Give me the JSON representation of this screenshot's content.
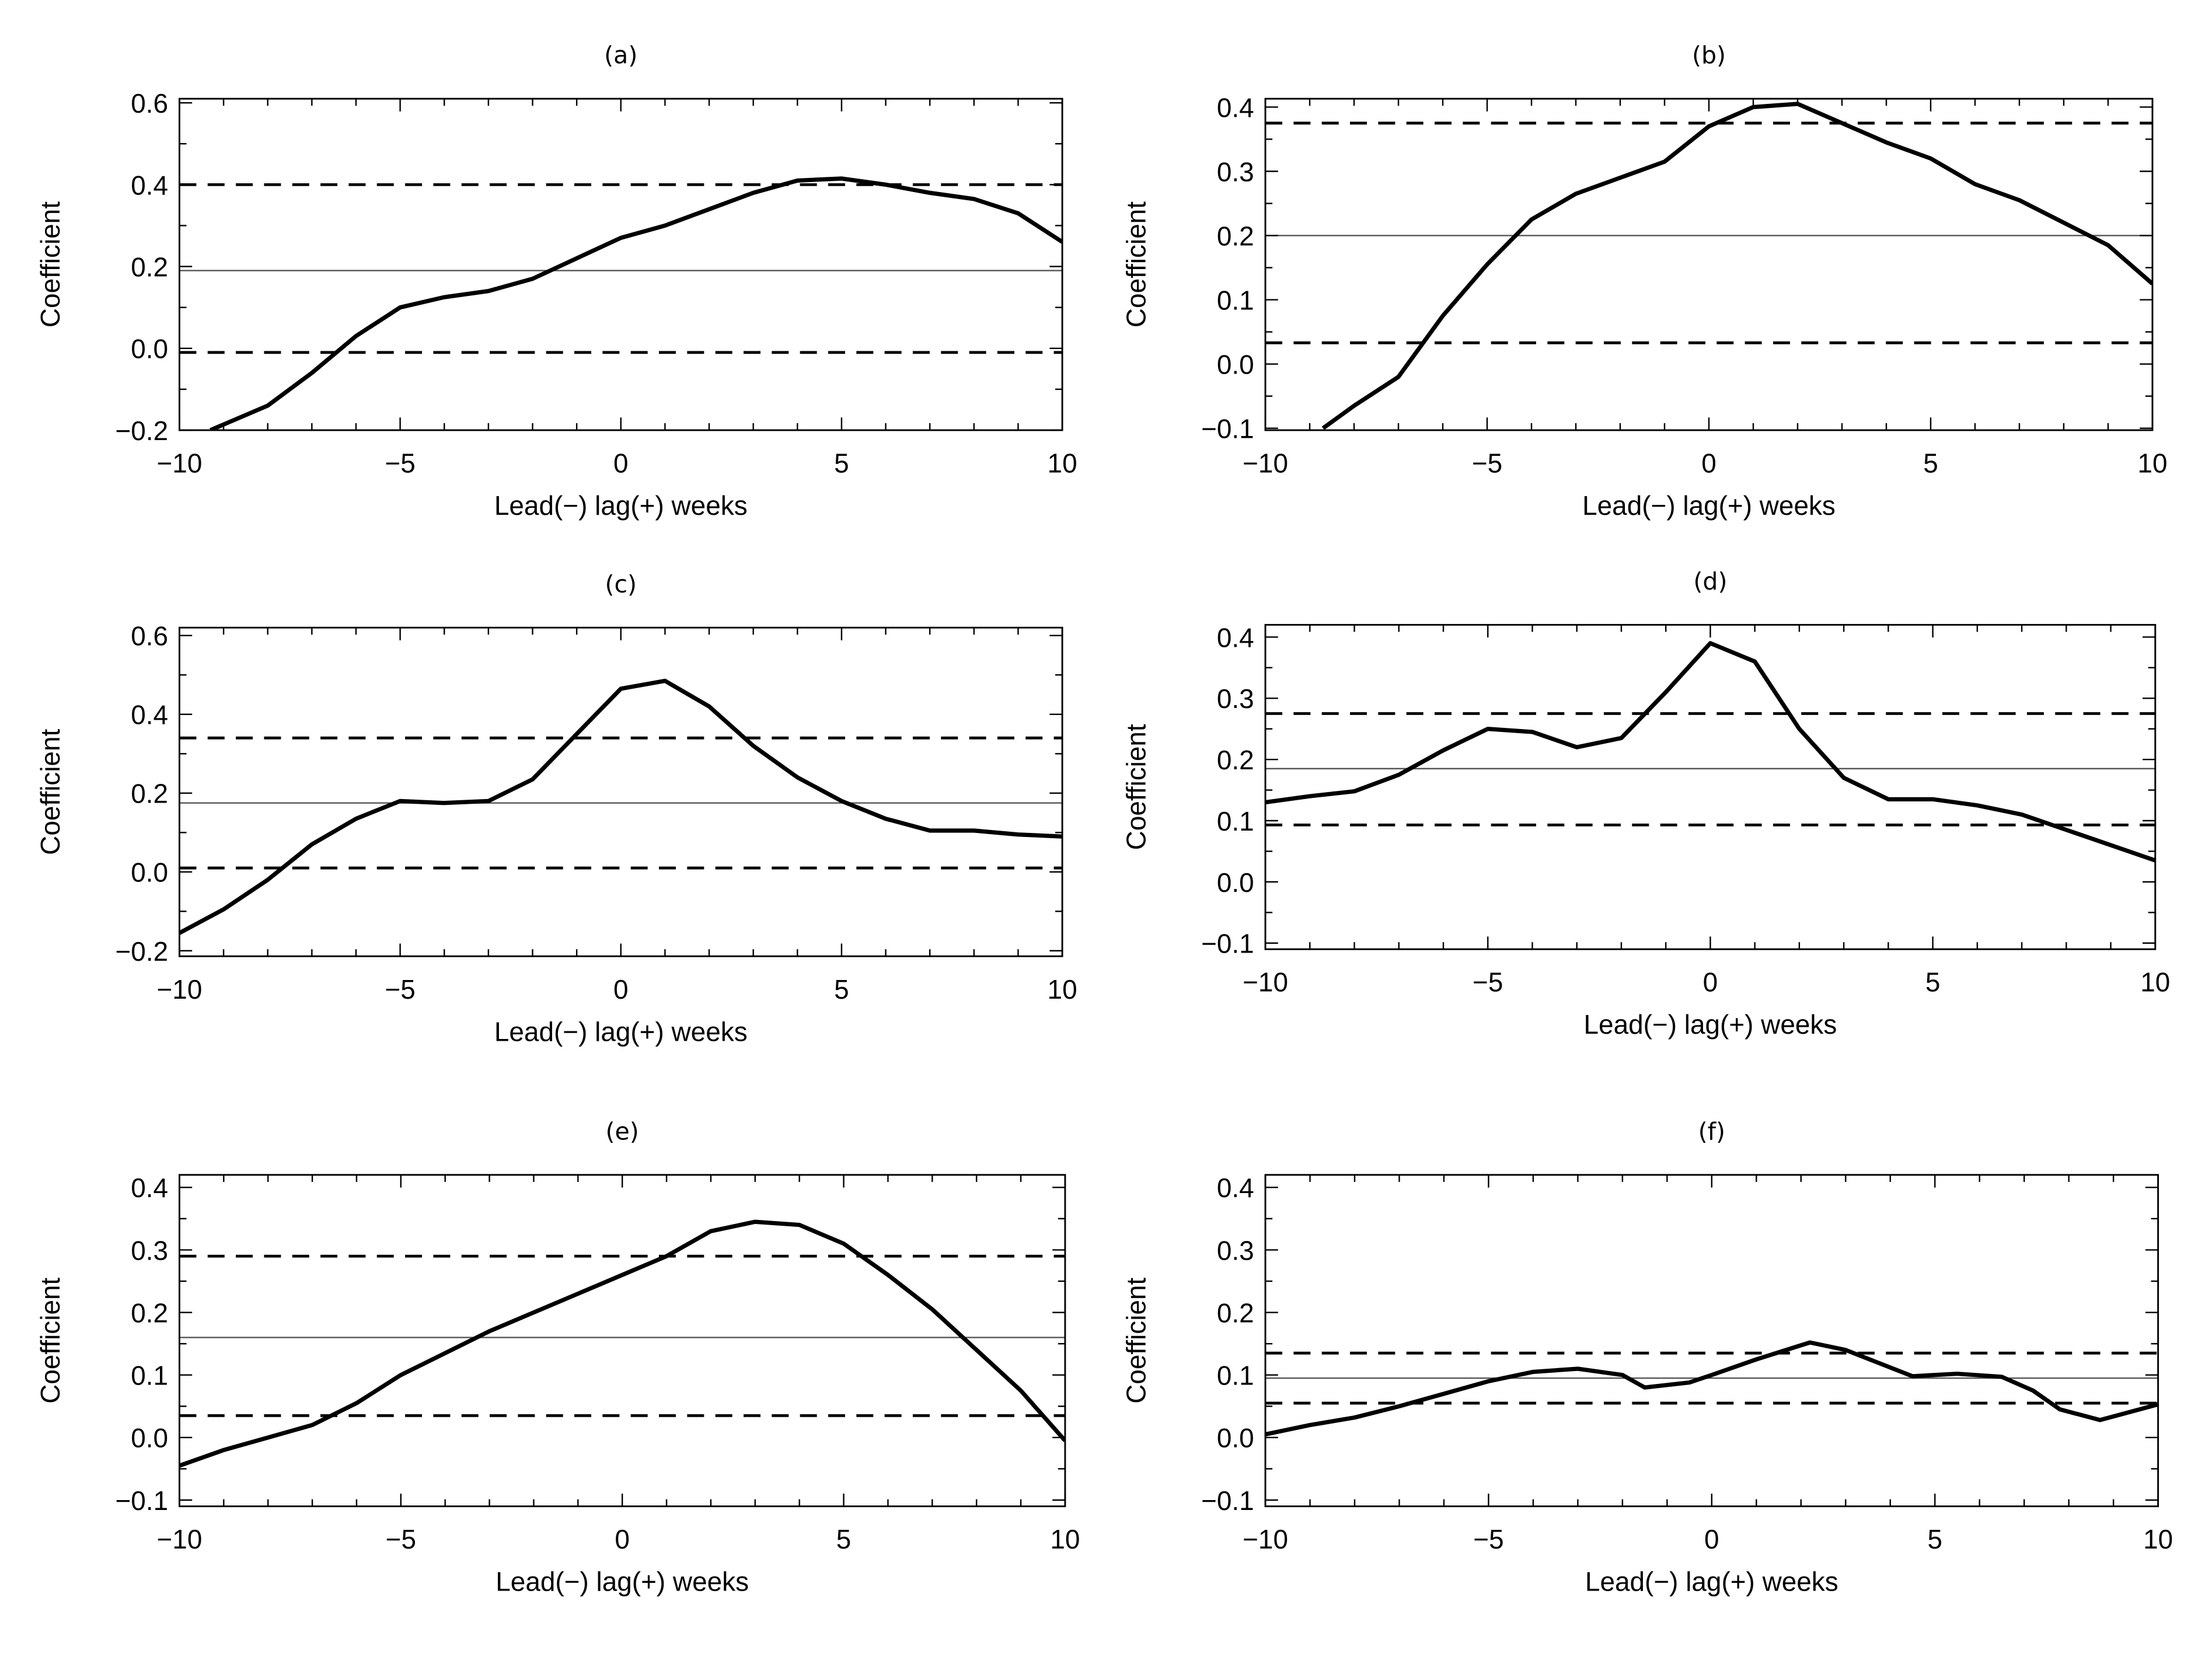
{
  "chart_data": [
    {
      "type": "line",
      "title": "(a)",
      "xlabel": "Lead(−) lag(+) weeks",
      "ylabel": "Coefficient",
      "xlim": [
        -10,
        10
      ],
      "ylim": [
        -0.2,
        0.61
      ],
      "xticks": [
        -10,
        -5,
        0,
        5,
        10
      ],
      "yticks": [
        -0.2,
        0.0,
        0.2,
        0.4,
        0.6
      ],
      "ytick_labels": [
        "−0.2",
        "0.0",
        "0.2",
        "0.4",
        "0.6"
      ],
      "x": [
        -9.3,
        -8,
        -7,
        -6,
        -5,
        -4,
        -3,
        -2,
        -1,
        0,
        1,
        2,
        3,
        4,
        5,
        6,
        7,
        8,
        9,
        10
      ],
      "y": [
        -0.2,
        -0.14,
        -0.06,
        0.03,
        0.1,
        0.125,
        0.14,
        0.17,
        0.22,
        0.27,
        0.3,
        0.34,
        0.38,
        0.41,
        0.415,
        0.4,
        0.38,
        0.365,
        0.33,
        0.26
      ],
      "dashed_levels": [
        0.4,
        -0.01
      ],
      "solid_level": 0.19
    },
    {
      "type": "line",
      "title": "(b)",
      "xlabel": "Lead(−) lag(+) weeks",
      "ylabel": "Coefficient",
      "xlim": [
        -10,
        10
      ],
      "ylim": [
        -0.103,
        0.413
      ],
      "xticks": [
        -10,
        -5,
        0,
        5,
        10
      ],
      "yticks": [
        -0.1,
        0.0,
        0.1,
        0.2,
        0.3,
        0.4
      ],
      "ytick_labels": [
        "−0.1",
        "0.0",
        "0.1",
        "0.2",
        "0.3",
        "0.4"
      ],
      "x": [
        -8.7,
        -8,
        -7,
        -6,
        -5,
        -4,
        -3,
        -2,
        -1,
        0,
        1,
        2,
        3,
        4,
        5,
        6,
        7,
        8,
        9,
        10
      ],
      "y": [
        -0.1,
        -0.065,
        -0.02,
        0.075,
        0.155,
        0.225,
        0.265,
        0.29,
        0.315,
        0.37,
        0.4,
        0.405,
        0.375,
        0.345,
        0.32,
        0.28,
        0.255,
        0.22,
        0.185,
        0.125
      ],
      "dashed_levels": [
        0.375,
        0.033
      ],
      "solid_level": 0.2
    },
    {
      "type": "line",
      "title": "(c)",
      "xlabel": "Lead(−) lag(+) weeks",
      "ylabel": "Coefficient",
      "xlim": [
        -10,
        10
      ],
      "ylim": [
        -0.214,
        0.62
      ],
      "xticks": [
        -10,
        -5,
        0,
        5,
        10
      ],
      "yticks": [
        -0.2,
        0.0,
        0.2,
        0.4,
        0.6
      ],
      "ytick_labels": [
        "−0.2",
        "0.0",
        "0.2",
        "0.4",
        "0.6"
      ],
      "x": [
        -10,
        -9,
        -8,
        -7,
        -6,
        -5,
        -4,
        -3,
        -2,
        -1,
        0,
        1,
        2,
        3,
        4,
        5,
        6,
        7,
        8,
        9,
        10
      ],
      "y": [
        -0.155,
        -0.095,
        -0.02,
        0.07,
        0.135,
        0.18,
        0.175,
        0.18,
        0.235,
        0.35,
        0.465,
        0.485,
        0.42,
        0.32,
        0.24,
        0.18,
        0.135,
        0.105,
        0.105,
        0.095,
        0.09
      ],
      "dashed_levels": [
        0.34,
        0.01
      ],
      "solid_level": 0.175
    },
    {
      "type": "line",
      "title": "(d)",
      "xlabel": "Lead(−) lag(+) weeks",
      "ylabel": "Coefficient",
      "xlim": [
        -10,
        10
      ],
      "ylim": [
        -0.11,
        0.42
      ],
      "xticks": [
        -10,
        -5,
        0,
        5,
        10
      ],
      "yticks": [
        -0.1,
        0.0,
        0.1,
        0.2,
        0.3,
        0.4
      ],
      "ytick_labels": [
        "−0.1",
        "0.0",
        "0.1",
        "0.2",
        "0.3",
        "0.4"
      ],
      "x": [
        -10,
        -9,
        -8,
        -7,
        -6,
        -5,
        -4,
        -3,
        -2,
        -1,
        0,
        1,
        2,
        3,
        4,
        5,
        6,
        7,
        8,
        9,
        10
      ],
      "y": [
        0.13,
        0.14,
        0.148,
        0.175,
        0.215,
        0.25,
        0.245,
        0.22,
        0.235,
        0.31,
        0.39,
        0.36,
        0.25,
        0.17,
        0.135,
        0.135,
        0.125,
        0.11,
        0.085,
        0.06,
        0.035
      ],
      "dashed_levels": [
        0.275,
        0.093
      ],
      "solid_level": 0.185
    },
    {
      "type": "line",
      "title": "(e)",
      "xlabel": "Lead(−) lag(+) weeks",
      "ylabel": "Coefficient",
      "xlim": [
        -10,
        10
      ],
      "ylim": [
        -0.11,
        0.42
      ],
      "xticks": [
        -10,
        -5,
        0,
        5,
        10
      ],
      "yticks": [
        -0.1,
        0.0,
        0.1,
        0.2,
        0.3,
        0.4
      ],
      "ytick_labels": [
        "−0.1",
        "0.0",
        "0.1",
        "0.2",
        "0.3",
        "0.4"
      ],
      "x": [
        -10,
        -9,
        -8,
        -7,
        -6,
        -5,
        -4,
        -3,
        -2,
        -1,
        0,
        1,
        2,
        3,
        4,
        5,
        6,
        7,
        8,
        9,
        10
      ],
      "y": [
        -0.045,
        -0.02,
        0.0,
        0.02,
        0.055,
        0.1,
        0.135,
        0.17,
        0.2,
        0.23,
        0.26,
        0.29,
        0.33,
        0.345,
        0.34,
        0.31,
        0.26,
        0.205,
        0.14,
        0.075,
        -0.005
      ],
      "dashed_levels": [
        0.29,
        0.035
      ],
      "solid_level": 0.16
    },
    {
      "type": "line",
      "title": "(f)",
      "xlabel": "Lead(−) lag(+) weeks",
      "ylabel": "Coefficient",
      "xlim": [
        -10,
        10
      ],
      "ylim": [
        -0.11,
        0.42
      ],
      "xticks": [
        -10,
        -5,
        0,
        5,
        10
      ],
      "yticks": [
        -0.1,
        0.0,
        0.1,
        0.2,
        0.3,
        0.4
      ],
      "ytick_labels": [
        "−0.1",
        "0.0",
        "0.1",
        "0.2",
        "0.3",
        "0.4"
      ],
      "x": [
        -10,
        -9,
        -8,
        -7,
        -6,
        -5,
        -4,
        -3,
        -2,
        -1.5,
        -0.5,
        0,
        1,
        2.2,
        3,
        4.5,
        5.5,
        6.5,
        7.2,
        7.8,
        8.7,
        10
      ],
      "y": [
        0.005,
        0.02,
        0.032,
        0.05,
        0.07,
        0.09,
        0.105,
        0.11,
        0.1,
        0.08,
        0.088,
        0.1,
        0.125,
        0.152,
        0.14,
        0.098,
        0.102,
        0.097,
        0.075,
        0.045,
        0.028,
        0.053
      ],
      "dashed_levels": [
        0.135,
        0.055
      ],
      "solid_level": 0.095
    }
  ]
}
